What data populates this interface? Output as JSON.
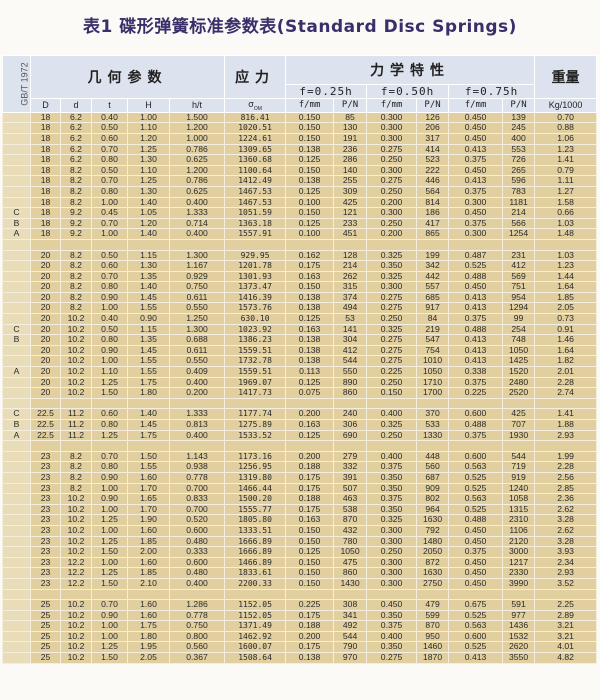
{
  "title": "表1 碟形弹簧标准参数表(Standard Disc Springs)",
  "header": {
    "standard": "GB/T 1972",
    "geometry": "几何参数",
    "stress": "应力",
    "mechanics": "力学特性",
    "weight": "重量",
    "f_groups": [
      "f=0.25h",
      "f=0.50h",
      "f=0.75h"
    ],
    "columns": [
      "D",
      "d",
      "t",
      "H",
      "h/t"
    ],
    "stress_symbol": "σ",
    "stress_sub": "OM",
    "mech_cols": [
      "f/mm",
      "P/N",
      "f/mm",
      "P/N",
      "f/mm",
      "P/N"
    ],
    "weight_unit": "Kg/1000"
  },
  "colors": {
    "title": "#3b2f6b",
    "header_bg": "#dde3ee",
    "cell_bg": "#e2cf9f"
  },
  "rows": [
    [
      "",
      "18",
      "6.2",
      "0.40",
      "1.00",
      "1.500",
      "816.41",
      "0.150",
      "85",
      "0.300",
      "126",
      "0.450",
      "139",
      "0.70"
    ],
    [
      "",
      "18",
      "6.2",
      "0.50",
      "1.10",
      "1.200",
      "1020.51",
      "0.150",
      "130",
      "0.300",
      "206",
      "0.450",
      "245",
      "0.88"
    ],
    [
      "",
      "18",
      "6.2",
      "0.60",
      "1.20",
      "1.000",
      "1224.61",
      "0.150",
      "191",
      "0.300",
      "317",
      "0.450",
      "400",
      "1.06"
    ],
    [
      "",
      "18",
      "6.2",
      "0.70",
      "1.25",
      "0.786",
      "1309.65",
      "0.138",
      "236",
      "0.275",
      "414",
      "0.413",
      "553",
      "1.23"
    ],
    [
      "",
      "18",
      "6.2",
      "0.80",
      "1.30",
      "0.625",
      "1360.68",
      "0.125",
      "286",
      "0.250",
      "523",
      "0.375",
      "726",
      "1.41"
    ],
    [
      "",
      "18",
      "8.2",
      "0.50",
      "1.10",
      "1.200",
      "1100.64",
      "0.150",
      "140",
      "0.300",
      "222",
      "0.450",
      "265",
      "0.79"
    ],
    [
      "",
      "18",
      "8.2",
      "0.70",
      "1.25",
      "0.786",
      "1412.49",
      "0.138",
      "255",
      "0.275",
      "446",
      "0.413",
      "596",
      "1.11"
    ],
    [
      "",
      "18",
      "8.2",
      "0.80",
      "1.30",
      "0.625",
      "1467.53",
      "0.125",
      "309",
      "0.250",
      "564",
      "0.375",
      "783",
      "1.27"
    ],
    [
      "",
      "18",
      "8.2",
      "1.00",
      "1.40",
      "0.400",
      "1467.53",
      "0.100",
      "425",
      "0.200",
      "814",
      "0.300",
      "1181",
      "1.58"
    ],
    [
      "C",
      "18",
      "9.2",
      "0.45",
      "1.05",
      "1.333",
      "1051.59",
      "0.150",
      "121",
      "0.300",
      "186",
      "0.450",
      "214",
      "0.66"
    ],
    [
      "B",
      "18",
      "9.2",
      "0.70",
      "1.20",
      "0.714",
      "1363.18",
      "0.125",
      "233",
      "0.250",
      "417",
      "0.375",
      "566",
      "1.03"
    ],
    [
      "A",
      "18",
      "9.2",
      "1.00",
      "1.40",
      "0.400",
      "1557.91",
      "0.100",
      "451",
      "0.200",
      "865",
      "0.300",
      "1254",
      "1.48"
    ],
    [],
    [
      "",
      "20",
      "8.2",
      "0.50",
      "1.15",
      "1.300",
      "929.95",
      "0.162",
      "128",
      "0.325",
      "199",
      "0.487",
      "231",
      "1.03"
    ],
    [
      "",
      "20",
      "8.2",
      "0.60",
      "1.30",
      "1.167",
      "1201.78",
      "0.175",
      "214",
      "0.350",
      "342",
      "0.525",
      "412",
      "1.23"
    ],
    [
      "",
      "20",
      "8.2",
      "0.70",
      "1.35",
      "0.929",
      "1301.93",
      "0.163",
      "262",
      "0.325",
      "442",
      "0.488",
      "569",
      "1.44"
    ],
    [
      "",
      "20",
      "8.2",
      "0.80",
      "1.40",
      "0.750",
      "1373.47",
      "0.150",
      "315",
      "0.300",
      "557",
      "0.450",
      "751",
      "1.64"
    ],
    [
      "",
      "20",
      "8.2",
      "0.90",
      "1.45",
      "0.611",
      "1416.39",
      "0.138",
      "374",
      "0.275",
      "685",
      "0.413",
      "954",
      "1.85"
    ],
    [
      "",
      "20",
      "8.2",
      "1.00",
      "1.55",
      "0.550",
      "1573.76",
      "0.138",
      "494",
      "0.275",
      "917",
      "0.413",
      "1294",
      "2.05"
    ],
    [
      "",
      "20",
      "10.2",
      "0.40",
      "0.90",
      "1.250",
      "630.10",
      "0.125",
      "53",
      "0.250",
      "84",
      "0.375",
      "99",
      "0.73"
    ],
    [
      "C",
      "20",
      "10.2",
      "0.50",
      "1.15",
      "1.300",
      "1023.92",
      "0.163",
      "141",
      "0.325",
      "219",
      "0.488",
      "254",
      "0.91"
    ],
    [
      "B",
      "20",
      "10.2",
      "0.80",
      "1.35",
      "0.688",
      "1386.23",
      "0.138",
      "304",
      "0.275",
      "547",
      "0.413",
      "748",
      "1.46"
    ],
    [
      "",
      "20",
      "10.2",
      "0.90",
      "1.45",
      "0.611",
      "1559.51",
      "0.138",
      "412",
      "0.275",
      "754",
      "0.413",
      "1050",
      "1.64"
    ],
    [
      "",
      "20",
      "10.2",
      "1.00",
      "1.55",
      "0.550",
      "1732.78",
      "0.138",
      "544",
      "0.275",
      "1010",
      "0.413",
      "1425",
      "1.82"
    ],
    [
      "A",
      "20",
      "10.2",
      "1.10",
      "1.55",
      "0.409",
      "1559.51",
      "0.113",
      "550",
      "0.225",
      "1050",
      "0.338",
      "1520",
      "2.01"
    ],
    [
      "",
      "20",
      "10.2",
      "1.25",
      "1.75",
      "0.400",
      "1969.07",
      "0.125",
      "890",
      "0.250",
      "1710",
      "0.375",
      "2480",
      "2.28"
    ],
    [
      "",
      "20",
      "10.2",
      "1.50",
      "1.80",
      "0.200",
      "1417.73",
      "0.075",
      "860",
      "0.150",
      "1700",
      "0.225",
      "2520",
      "2.74"
    ],
    [],
    [
      "C",
      "22.5",
      "11.2",
      "0.60",
      "1.40",
      "1.333",
      "1177.74",
      "0.200",
      "240",
      "0.400",
      "370",
      "0.600",
      "425",
      "1.41"
    ],
    [
      "B",
      "22.5",
      "11.2",
      "0.80",
      "1.45",
      "0.813",
      "1275.89",
      "0.163",
      "306",
      "0.325",
      "533",
      "0.488",
      "707",
      "1.88"
    ],
    [
      "A",
      "22.5",
      "11.2",
      "1.25",
      "1.75",
      "0.400",
      "1533.52",
      "0.125",
      "690",
      "0.250",
      "1330",
      "0.375",
      "1930",
      "2.93"
    ],
    [],
    [
      "",
      "23",
      "8.2",
      "0.70",
      "1.50",
      "1.143",
      "1173.16",
      "0.200",
      "279",
      "0.400",
      "448",
      "0.600",
      "544",
      "1.99"
    ],
    [
      "",
      "23",
      "8.2",
      "0.80",
      "1.55",
      "0.938",
      "1256.95",
      "0.188",
      "332",
      "0.375",
      "560",
      "0.563",
      "719",
      "2.28"
    ],
    [
      "",
      "23",
      "8.2",
      "0.90",
      "1.60",
      "0.778",
      "1319.80",
      "0.175",
      "391",
      "0.350",
      "687",
      "0.525",
      "919",
      "2.56"
    ],
    [
      "",
      "23",
      "8.2",
      "1.00",
      "1.70",
      "0.700",
      "1466.44",
      "0.175",
      "507",
      "0.350",
      "909",
      "0.525",
      "1240",
      "2.85"
    ],
    [
      "",
      "23",
      "10.2",
      "0.90",
      "1.65",
      "0.833",
      "1500.20",
      "0.188",
      "463",
      "0.375",
      "802",
      "0.563",
      "1058",
      "2.36"
    ],
    [
      "",
      "23",
      "10.2",
      "1.00",
      "1.70",
      "0.700",
      "1555.77",
      "0.175",
      "538",
      "0.350",
      "964",
      "0.525",
      "1315",
      "2.62"
    ],
    [
      "",
      "23",
      "10.2",
      "1.25",
      "1.90",
      "0.520",
      "1805.80",
      "0.163",
      "870",
      "0.325",
      "1630",
      "0.488",
      "2310",
      "3.28"
    ],
    [
      "",
      "23",
      "10.2",
      "1.00",
      "1.60",
      "0.600",
      "1333.51",
      "0.150",
      "432",
      "0.300",
      "792",
      "0.450",
      "1106",
      "2.62"
    ],
    [
      "",
      "23",
      "10.2",
      "1.25",
      "1.85",
      "0.480",
      "1666.89",
      "0.150",
      "780",
      "0.300",
      "1480",
      "0.450",
      "2120",
      "3.28"
    ],
    [
      "",
      "23",
      "10.2",
      "1.50",
      "2.00",
      "0.333",
      "1666.89",
      "0.125",
      "1050",
      "0.250",
      "2050",
      "0.375",
      "3000",
      "3.93"
    ],
    [
      "",
      "23",
      "12.2",
      "1.00",
      "1.60",
      "0.600",
      "1466.89",
      "0.150",
      "475",
      "0.300",
      "872",
      "0.450",
      "1217",
      "2.34"
    ],
    [
      "",
      "23",
      "12.2",
      "1.25",
      "1.85",
      "0.480",
      "1833.61",
      "0.150",
      "860",
      "0.300",
      "1630",
      "0.450",
      "2330",
      "2.93"
    ],
    [
      "",
      "23",
      "12.2",
      "1.50",
      "2.10",
      "0.400",
      "2200.33",
      "0.150",
      "1430",
      "0.300",
      "2750",
      "0.450",
      "3990",
      "3.52"
    ],
    [],
    [
      "",
      "25",
      "10.2",
      "0.70",
      "1.60",
      "1.286",
      "1152.05",
      "0.225",
      "308",
      "0.450",
      "479",
      "0.675",
      "591",
      "2.25"
    ],
    [
      "",
      "25",
      "10.2",
      "0.90",
      "1.60",
      "0.778",
      "1152.05",
      "0.175",
      "341",
      "0.350",
      "599",
      "0.525",
      "977",
      "2.89"
    ],
    [
      "",
      "25",
      "10.2",
      "1.00",
      "1.75",
      "0.750",
      "1371.49",
      "0.188",
      "492",
      "0.375",
      "870",
      "0.563",
      "1436",
      "3.21"
    ],
    [
      "",
      "25",
      "10.2",
      "1.00",
      "1.80",
      "0.800",
      "1462.92",
      "0.200",
      "544",
      "0.400",
      "950",
      "0.600",
      "1532",
      "3.21"
    ],
    [
      "",
      "25",
      "10.2",
      "1.25",
      "1.95",
      "0.560",
      "1600.07",
      "0.175",
      "790",
      "0.350",
      "1460",
      "0.525",
      "2620",
      "4.01"
    ],
    [
      "",
      "25",
      "10.2",
      "1.50",
      "2.05",
      "0.367",
      "1508.64",
      "0.138",
      "970",
      "0.275",
      "1870",
      "0.413",
      "3550",
      "4.82"
    ]
  ]
}
